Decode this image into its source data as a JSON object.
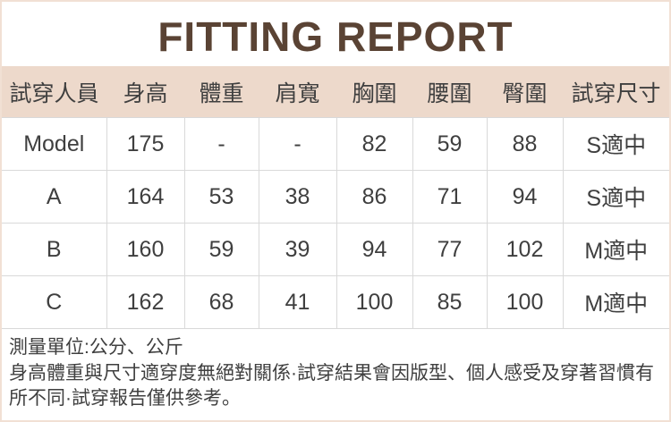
{
  "page": {
    "title": "FITTING REPORT",
    "colors": {
      "title_text": "#5a4334",
      "header_bg": "#edd9cb",
      "body_text": "#3f3f3f",
      "grid_border": "#d9d9d9",
      "page_border": "#f1e0d4"
    }
  },
  "table": {
    "columns": [
      "試穿人員",
      "身高",
      "體重",
      "肩寬",
      "胸圍",
      "腰圍",
      "臀圍",
      "試穿尺寸"
    ],
    "rows": [
      [
        "Model",
        "175",
        "-",
        "-",
        "82",
        "59",
        "88",
        "S適中"
      ],
      [
        "A",
        "164",
        "53",
        "38",
        "86",
        "71",
        "94",
        "S適中"
      ],
      [
        "B",
        "160",
        "59",
        "39",
        "94",
        "77",
        "102",
        "M適中"
      ],
      [
        "C",
        "162",
        "68",
        "41",
        "100",
        "85",
        "100",
        "M適中"
      ]
    ]
  },
  "footer": {
    "unit_note": "測量單位:公分、公斤",
    "disclaimer": "身高體重與尺寸適穿度無絕對關係·試穿結果會因版型、個人感受及穿著習慣有所不同·試穿報告僅供參考。"
  }
}
